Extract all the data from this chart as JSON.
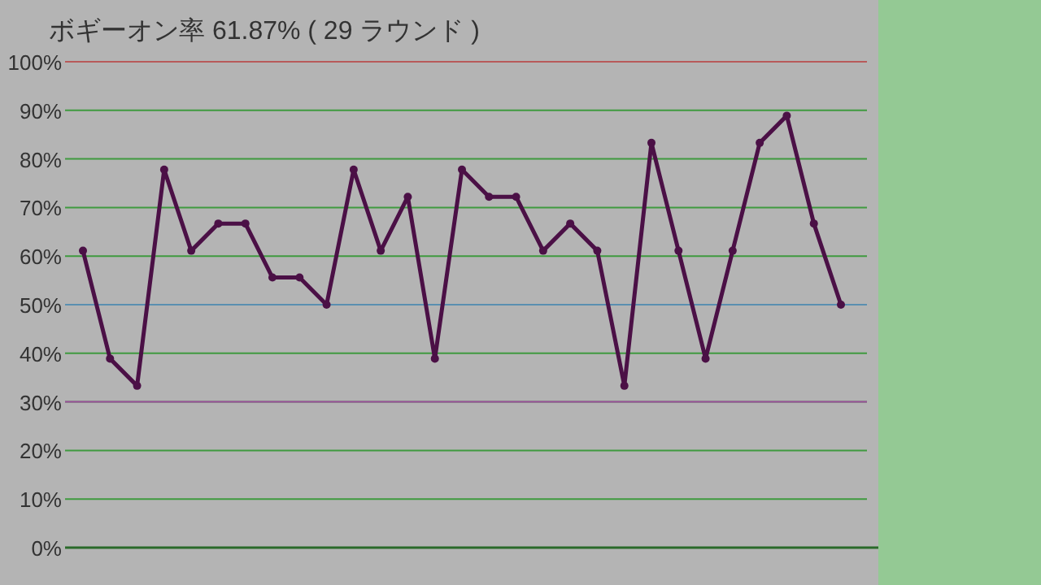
{
  "chart_data": {
    "type": "line",
    "title": "ボギーオン率 61.87% ( 29 ラウンド )",
    "categories": [
      null,
      null,
      null,
      null,
      null,
      null,
      null,
      null,
      null,
      null,
      null,
      null,
      null,
      null,
      null,
      null,
      null,
      null,
      null,
      null,
      null,
      null,
      null,
      null,
      null,
      null,
      null,
      null,
      null
    ],
    "series": [
      {
        "color": "#4b1046",
        "values": [
          61.1,
          38.9,
          33.3,
          77.8,
          61.1,
          66.7,
          66.7,
          55.6,
          55.6,
          50,
          77.8,
          61.1,
          72.2,
          38.9,
          77.8,
          72.2,
          72.2,
          61.1,
          66.7,
          61.1,
          33.3,
          83.3,
          61.1,
          38.9,
          61.1,
          83.3,
          88.9,
          66.7,
          50
        ]
      }
    ],
    "ylim": [
      0,
      100
    ],
    "yticks": [
      {
        "value": 0,
        "label": "0%"
      },
      {
        "value": 10,
        "label": "10%"
      },
      {
        "value": 20,
        "label": "20%"
      },
      {
        "value": 30,
        "label": "30%"
      },
      {
        "value": 40,
        "label": "40%"
      },
      {
        "value": 50,
        "label": "50%"
      },
      {
        "value": 60,
        "label": "60%"
      },
      {
        "value": 70,
        "label": "70%"
      },
      {
        "value": 80,
        "label": "80%"
      },
      {
        "value": 90,
        "label": "90%"
      },
      {
        "value": 100,
        "label": "100%"
      }
    ],
    "grid": "y",
    "marker": "circle",
    "line_style": "solid",
    "tick_labels": "y",
    "ref_lines": [
      {
        "axis": "y",
        "value": 100,
        "color": "#b85a5a"
      },
      {
        "axis": "y",
        "value": 50,
        "color": "#5a8fb0"
      },
      {
        "axis": "y",
        "value": 30,
        "color": "#a050a0"
      }
    ]
  }
}
